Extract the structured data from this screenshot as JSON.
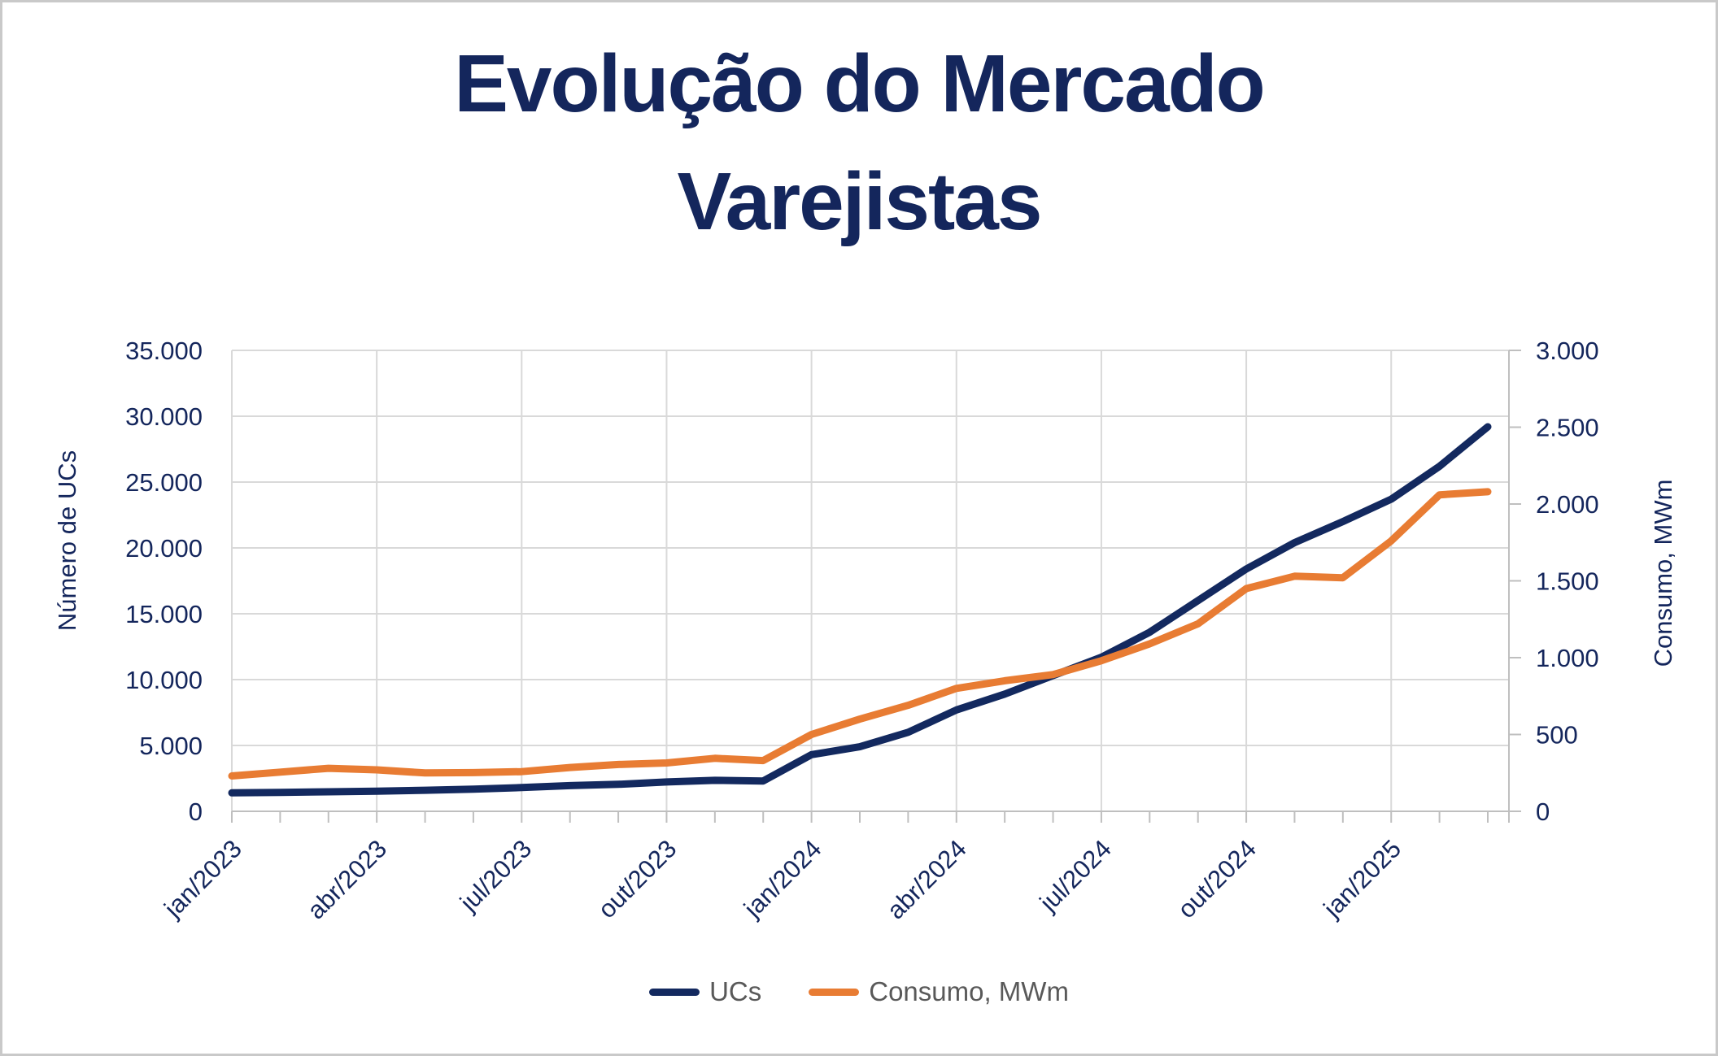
{
  "title": {
    "line1": "Evolução do Mercado",
    "line2": "Varejistas",
    "color": "#14265c"
  },
  "colors": {
    "axis_text": "#14265c",
    "grid": "#d9d9d9",
    "axis_line": "#bfbfbf",
    "legend_text": "#595959",
    "page_border": "#c9c9c9",
    "series_ucs": "#13295f",
    "series_consumo": "#e87c33"
  },
  "chart_data": {
    "type": "line",
    "categories": [
      "jan/2023",
      "fev/2023",
      "mar/2023",
      "abr/2023",
      "mai/2023",
      "jun/2023",
      "jul/2023",
      "ago/2023",
      "set/2023",
      "out/2023",
      "nov/2023",
      "dez/2023",
      "jan/2024",
      "fev/2024",
      "mar/2024",
      "abr/2024",
      "mai/2024",
      "jun/2024",
      "jul/2024",
      "ago/2024",
      "set/2024",
      "out/2024",
      "nov/2024",
      "dez/2024",
      "jan/2025",
      "fev/2025",
      "mar/2025"
    ],
    "x_tick_label_every": 3,
    "x_tick_labels": [
      "jan/2023",
      "abr/2023",
      "jul/2023",
      "out/2023",
      "jan/2024",
      "abr/2024",
      "jul/2024",
      "out/2024",
      "jan/2025"
    ],
    "series": [
      {
        "name": "UCs",
        "axis": "left",
        "color": "#13295f",
        "values": [
          1400,
          1440,
          1480,
          1530,
          1600,
          1680,
          1800,
          1950,
          2050,
          2230,
          2350,
          2300,
          4300,
          4900,
          6000,
          7700,
          8900,
          10300,
          11700,
          13600,
          16000,
          18400,
          20400,
          22000,
          23700,
          26200,
          29200
        ]
      },
      {
        "name": "Consumo, MWm",
        "axis": "right",
        "color": "#e87c33",
        "values": [
          230,
          255,
          280,
          270,
          250,
          252,
          258,
          285,
          305,
          315,
          345,
          330,
          500,
          600,
          690,
          800,
          850,
          890,
          980,
          1090,
          1220,
          1450,
          1530,
          1520,
          1760,
          2060,
          2080
        ]
      }
    ],
    "left_axis": {
      "label": "Número de UCs",
      "min": 0,
      "max": 35000,
      "step": 5000,
      "tick_labels": [
        "0",
        "5.000",
        "10.000",
        "15.000",
        "20.000",
        "25.000",
        "30.000",
        "35.000"
      ]
    },
    "right_axis": {
      "label": "Consumo, MWm",
      "min": 0,
      "max": 3000,
      "step": 500,
      "tick_labels": [
        "0",
        "500",
        "1.000",
        "1.500",
        "2.000",
        "2.500",
        "3.000"
      ]
    },
    "grid": true,
    "legend_position": "bottom"
  },
  "legend": {
    "items": [
      {
        "label": "UCs",
        "color": "#13295f"
      },
      {
        "label": "Consumo, MWm",
        "color": "#e87c33"
      }
    ]
  }
}
